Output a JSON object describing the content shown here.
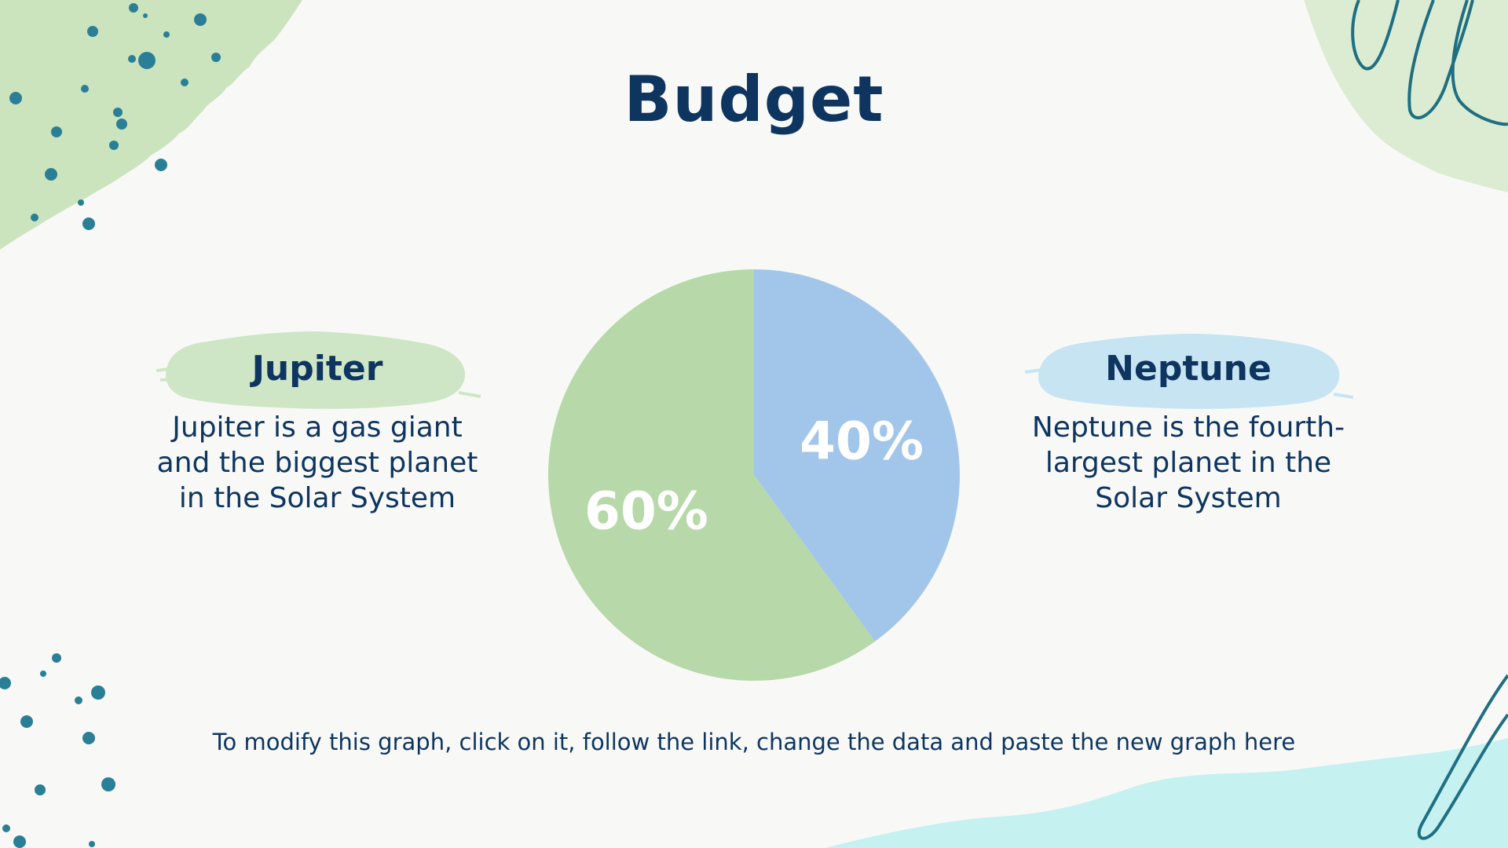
{
  "slide": {
    "title": "Budget",
    "footer_note": "To modify this graph, click on it, follow the link, change the data and paste the new graph here"
  },
  "panels": {
    "left": {
      "heading": "Jupiter",
      "body": "Jupiter is a gas giant and the biggest planet in the Solar System"
    },
    "right": {
      "heading": "Neptune",
      "body": "Neptune is the fourth-largest planet in the Solar System"
    }
  },
  "colors": {
    "navy": "#0e3560",
    "green": "#b7d8a8",
    "blue": "#a2c6ea",
    "teal": "#2a7f96",
    "light_green": "#cfe6c6",
    "light_blue": "#c7e4f2",
    "aqua": "#bff0ee"
  },
  "chart_data": {
    "type": "pie",
    "title": "",
    "slices": [
      {
        "name": "Neptune",
        "value": 40,
        "label": "40%",
        "color": "#a2c6ea"
      },
      {
        "name": "Jupiter",
        "value": 60,
        "label": "60%",
        "color": "#b7d8a8"
      }
    ],
    "start_angle_deg": 0,
    "direction": "clockwise"
  }
}
